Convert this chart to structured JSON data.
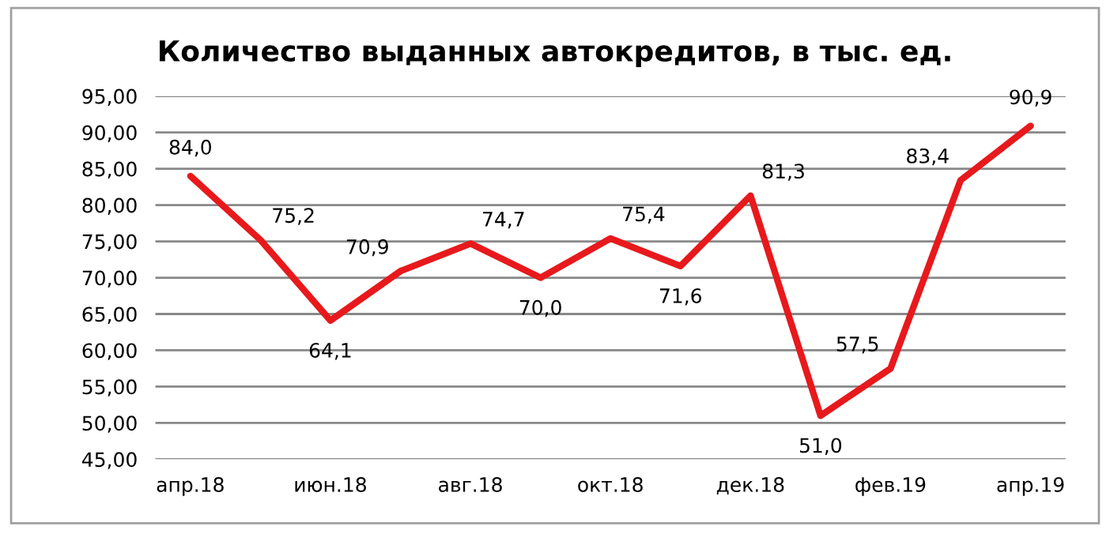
{
  "chart_data": {
    "type": "line",
    "title": "Количество выданных автокредитов, в тыс. ед.",
    "categories": [
      "апр.18",
      null,
      "июн.18",
      null,
      "авг.18",
      null,
      "окт.18",
      null,
      "дек.18",
      null,
      "фев.19",
      null,
      "апр.19"
    ],
    "series": [
      {
        "color": "#e8191c",
        "values": [
          84.0,
          75.2,
          64.1,
          70.9,
          74.7,
          70.0,
          75.4,
          71.6,
          81.3,
          51.0,
          57.5,
          83.4,
          90.9
        ],
        "value_labels": [
          "84,0",
          "75,2",
          "64,1",
          "70,9",
          "74,7",
          "70,0",
          "75,4",
          "71,6",
          "81,3",
          "51,0",
          "57,5",
          "83,4",
          "90,9"
        ]
      }
    ],
    "ylim": [
      45,
      95
    ],
    "yticks": [
      {
        "value": 45,
        "label": "45,00"
      },
      {
        "value": 50,
        "label": "50,00"
      },
      {
        "value": 55,
        "label": "55,00"
      },
      {
        "value": 60,
        "label": "60,00"
      },
      {
        "value": 65,
        "label": "65,00"
      },
      {
        "value": 70,
        "label": "70,00"
      },
      {
        "value": 75,
        "label": "75,00"
      },
      {
        "value": 80,
        "label": "80,00"
      },
      {
        "value": 85,
        "label": "85,00"
      },
      {
        "value": 90,
        "label": "90,00"
      },
      {
        "value": 95,
        "label": "95,00"
      }
    ],
    "grid": "y",
    "marker": "none",
    "line_style": "solid",
    "legend": false
  }
}
